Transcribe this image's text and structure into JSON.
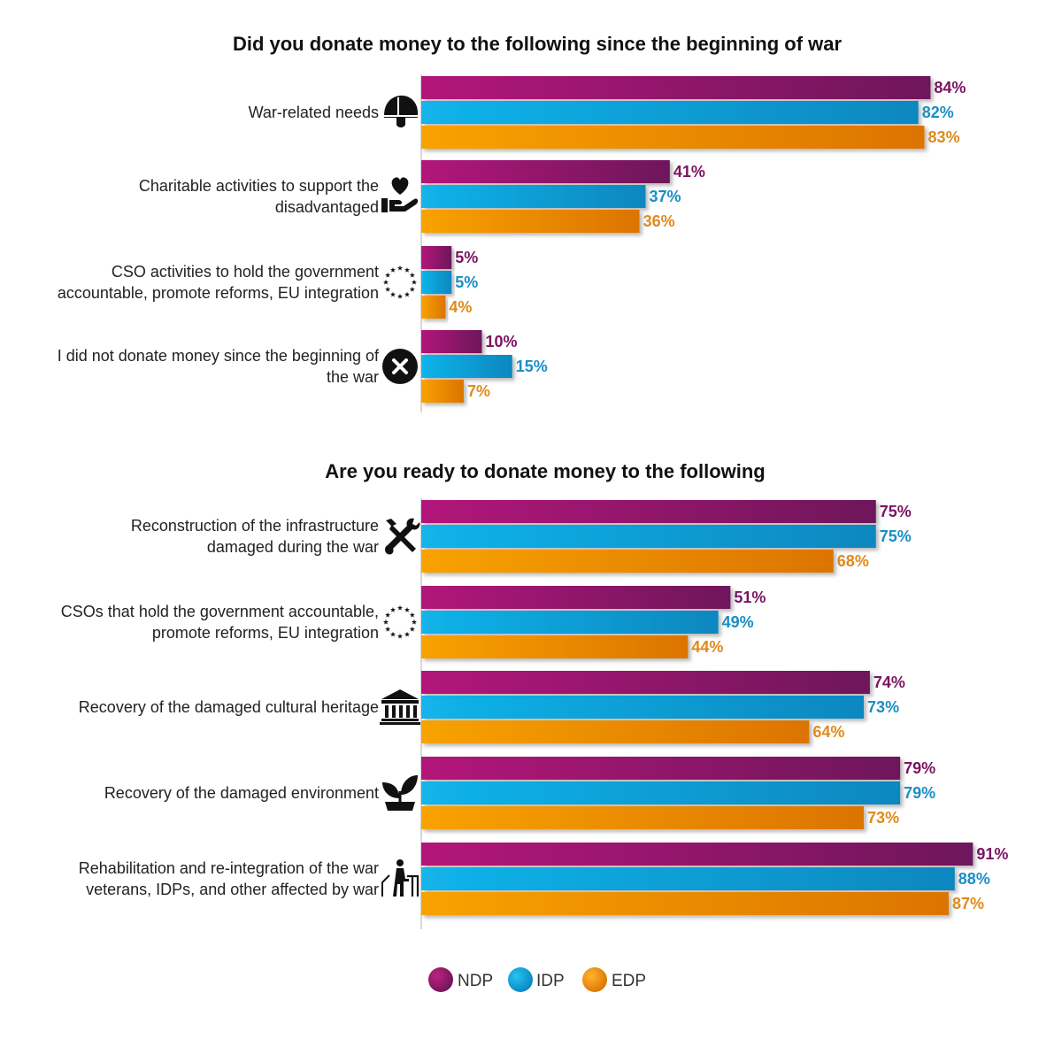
{
  "colors": {
    "NDP": "#8e1466",
    "IDP": "#0a9fd6",
    "EDP": "#f08d06",
    "NDP_value_text": "#7a1461",
    "IDP_value_text": "#1a8ec4",
    "EDP_value_text": "#e08a1c"
  },
  "legend": [
    {
      "name": "NDP",
      "color_key": "NDP"
    },
    {
      "name": "IDP",
      "color_key": "IDP"
    },
    {
      "name": "EDP",
      "color_key": "EDP"
    }
  ],
  "chart_data": [
    {
      "type": "bar",
      "orientation": "horizontal",
      "title": "Did you donate money to the following since the beginning of war",
      "xlim": [
        0,
        100
      ],
      "unit": "%",
      "legend_position": "bottom-center",
      "grid": false,
      "categories": [
        {
          "lines": [
            "War-related needs"
          ],
          "icon": "helmet-icon"
        },
        {
          "lines": [
            "Charitable activities to support the",
            "disadvantaged"
          ],
          "icon": "heart-in-hand-icon"
        },
        {
          "lines": [
            "CSO activities to hold the government",
            "accountable, promote reforms, EU integration"
          ],
          "icon": "eu-stars-icon"
        },
        {
          "lines": [
            "I did not donate money since the beginning of",
            "the war"
          ],
          "icon": "close-circle-icon"
        }
      ],
      "series": [
        {
          "name": "NDP",
          "values": [
            84,
            41,
            5,
            10
          ]
        },
        {
          "name": "IDP",
          "values": [
            82,
            37,
            5,
            15
          ]
        },
        {
          "name": "EDP",
          "values": [
            83,
            36,
            4,
            7
          ]
        }
      ]
    },
    {
      "type": "bar",
      "orientation": "horizontal",
      "title": "Are you ready to donate money to the following",
      "xlim": [
        0,
        100
      ],
      "unit": "%",
      "legend_position": "bottom-center",
      "grid": false,
      "categories": [
        {
          "lines": [
            "Reconstruction of the infrastructure",
            "damaged during the war"
          ],
          "icon": "tools-icon"
        },
        {
          "lines": [
            "CSOs that hold the government accountable,",
            "promote reforms, EU integration"
          ],
          "icon": "eu-stars-icon"
        },
        {
          "lines": [
            "Recovery of the damaged cultural heritage"
          ],
          "icon": "museum-icon"
        },
        {
          "lines": [
            "Recovery of the damaged environment"
          ],
          "icon": "plant-icon"
        },
        {
          "lines": [
            "Rehabilitation and re-integration of the war",
            "veterans, IDPs, and other affected by war"
          ],
          "icon": "walker-person-icon"
        }
      ],
      "series": [
        {
          "name": "NDP",
          "values": [
            75,
            51,
            74,
            79,
            91
          ]
        },
        {
          "name": "IDP",
          "values": [
            75,
            49,
            73,
            79,
            88
          ]
        },
        {
          "name": "EDP",
          "values": [
            68,
            44,
            64,
            73,
            87
          ]
        }
      ]
    }
  ]
}
